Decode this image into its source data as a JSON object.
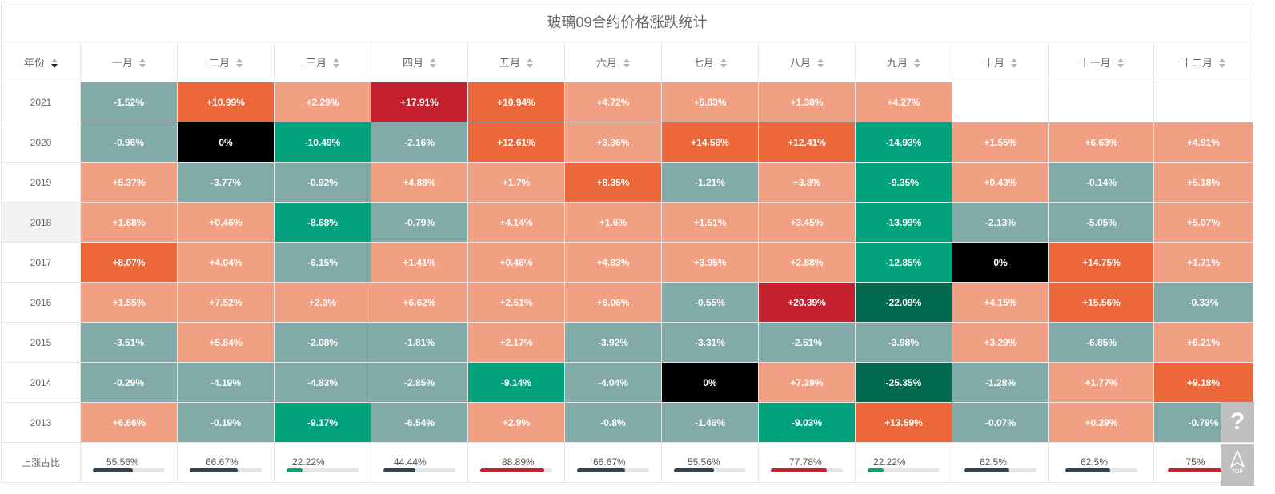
{
  "title": "玻璃09合约价格涨跌统计",
  "headers": [
    "年份",
    "一月",
    "二月",
    "三月",
    "四月",
    "五月",
    "六月",
    "七月",
    "八月",
    "九月",
    "十月",
    "十一月",
    "十二月"
  ],
  "rows": [
    {
      "year": "2021",
      "cells": [
        {
          "text": "-1.52%",
          "color": "#82aaa8"
        },
        {
          "text": "+10.99%",
          "color": "#ec6739"
        },
        {
          "text": "+2.29%",
          "color": "#f1a084"
        },
        {
          "text": "+17.91%",
          "color": "#c4202e"
        },
        {
          "text": "+10.94%",
          "color": "#ec6739"
        },
        {
          "text": "+4.72%",
          "color": "#f1a084"
        },
        {
          "text": "+5.83%",
          "color": "#f1a084"
        },
        {
          "text": "+1.38%",
          "color": "#f1a084"
        },
        {
          "text": "+4.27%",
          "color": "#f1a084"
        },
        {
          "text": "",
          "color": "#ffffff"
        },
        {
          "text": "",
          "color": "#ffffff"
        },
        {
          "text": "",
          "color": "#ffffff"
        }
      ]
    },
    {
      "year": "2020",
      "cells": [
        {
          "text": "-0.96%",
          "color": "#82aaa8"
        },
        {
          "text": "0%",
          "color": "#000000"
        },
        {
          "text": "-10.49%",
          "color": "#02a27d"
        },
        {
          "text": "-2.16%",
          "color": "#82aaa8"
        },
        {
          "text": "+12.61%",
          "color": "#ec6739"
        },
        {
          "text": "+3.36%",
          "color": "#f1a084"
        },
        {
          "text": "+14.56%",
          "color": "#ec6739"
        },
        {
          "text": "+12.41%",
          "color": "#ec6739"
        },
        {
          "text": "-14.93%",
          "color": "#02a27d"
        },
        {
          "text": "+1.55%",
          "color": "#f1a084"
        },
        {
          "text": "+6.63%",
          "color": "#f1a084"
        },
        {
          "text": "+4.91%",
          "color": "#f1a084"
        }
      ]
    },
    {
      "year": "2019",
      "cells": [
        {
          "text": "+5.37%",
          "color": "#f1a084"
        },
        {
          "text": "-3.77%",
          "color": "#82aaa8"
        },
        {
          "text": "-0.92%",
          "color": "#82aaa8"
        },
        {
          "text": "+4.88%",
          "color": "#f1a084"
        },
        {
          "text": "+1.7%",
          "color": "#f1a084"
        },
        {
          "text": "+8.35%",
          "color": "#ec6739"
        },
        {
          "text": "-1.21%",
          "color": "#82aaa8"
        },
        {
          "text": "+3.8%",
          "color": "#f1a084"
        },
        {
          "text": "-9.35%",
          "color": "#02a27d"
        },
        {
          "text": "+0.43%",
          "color": "#f1a084"
        },
        {
          "text": "-0.14%",
          "color": "#82aaa8"
        },
        {
          "text": "+5.18%",
          "color": "#f1a084"
        }
      ]
    },
    {
      "year": "2018",
      "highlight": true,
      "cells": [
        {
          "text": "+1.68%",
          "color": "#f1a084"
        },
        {
          "text": "+0.46%",
          "color": "#f1a084"
        },
        {
          "text": "-8.68%",
          "color": "#02a27d"
        },
        {
          "text": "-0.79%",
          "color": "#82aaa8"
        },
        {
          "text": "+4.14%",
          "color": "#f1a084"
        },
        {
          "text": "+1.6%",
          "color": "#f1a084"
        },
        {
          "text": "+1.51%",
          "color": "#f1a084"
        },
        {
          "text": "+3.45%",
          "color": "#f1a084"
        },
        {
          "text": "-13.99%",
          "color": "#02a27d"
        },
        {
          "text": "-2.13%",
          "color": "#82aaa8"
        },
        {
          "text": "-5.05%",
          "color": "#82aaa8"
        },
        {
          "text": "+5.07%",
          "color": "#f1a084"
        }
      ]
    },
    {
      "year": "2017",
      "cells": [
        {
          "text": "+8.07%",
          "color": "#ec6739"
        },
        {
          "text": "+4.04%",
          "color": "#f1a084"
        },
        {
          "text": "-6.15%",
          "color": "#82aaa8"
        },
        {
          "text": "+1.41%",
          "color": "#f1a084"
        },
        {
          "text": "+0.46%",
          "color": "#f1a084"
        },
        {
          "text": "+4.83%",
          "color": "#f1a084"
        },
        {
          "text": "+3.95%",
          "color": "#f1a084"
        },
        {
          "text": "+2.88%",
          "color": "#f1a084"
        },
        {
          "text": "-12.85%",
          "color": "#02a27d"
        },
        {
          "text": "0%",
          "color": "#000000"
        },
        {
          "text": "+14.75%",
          "color": "#ec6739"
        },
        {
          "text": "+1.71%",
          "color": "#f1a084"
        }
      ]
    },
    {
      "year": "2016",
      "cells": [
        {
          "text": "+1.55%",
          "color": "#f1a084"
        },
        {
          "text": "+7.52%",
          "color": "#f1a084"
        },
        {
          "text": "+2.3%",
          "color": "#f1a084"
        },
        {
          "text": "+6.62%",
          "color": "#f1a084"
        },
        {
          "text": "+2.51%",
          "color": "#f1a084"
        },
        {
          "text": "+6.06%",
          "color": "#f1a084"
        },
        {
          "text": "-0.55%",
          "color": "#82aaa8"
        },
        {
          "text": "+20.39%",
          "color": "#c4202e"
        },
        {
          "text": "-22.09%",
          "color": "#036a4f"
        },
        {
          "text": "+4.15%",
          "color": "#f1a084"
        },
        {
          "text": "+15.56%",
          "color": "#ec6739"
        },
        {
          "text": "-0.33%",
          "color": "#82aaa8"
        }
      ]
    },
    {
      "year": "2015",
      "cells": [
        {
          "text": "-3.51%",
          "color": "#82aaa8"
        },
        {
          "text": "+5.84%",
          "color": "#f1a084"
        },
        {
          "text": "-2.08%",
          "color": "#82aaa8"
        },
        {
          "text": "-1.81%",
          "color": "#82aaa8"
        },
        {
          "text": "+2.17%",
          "color": "#f1a084"
        },
        {
          "text": "-3.92%",
          "color": "#82aaa8"
        },
        {
          "text": "-3.31%",
          "color": "#82aaa8"
        },
        {
          "text": "-2.51%",
          "color": "#82aaa8"
        },
        {
          "text": "-3.98%",
          "color": "#82aaa8"
        },
        {
          "text": "+3.29%",
          "color": "#f1a084"
        },
        {
          "text": "-6.85%",
          "color": "#82aaa8"
        },
        {
          "text": "+6.21%",
          "color": "#f1a084"
        }
      ]
    },
    {
      "year": "2014",
      "cells": [
        {
          "text": "-0.29%",
          "color": "#82aaa8"
        },
        {
          "text": "-4.19%",
          "color": "#82aaa8"
        },
        {
          "text": "-4.83%",
          "color": "#82aaa8"
        },
        {
          "text": "-2.85%",
          "color": "#82aaa8"
        },
        {
          "text": "-9.14%",
          "color": "#02a27d"
        },
        {
          "text": "-4.04%",
          "color": "#82aaa8"
        },
        {
          "text": "0%",
          "color": "#000000"
        },
        {
          "text": "+7.39%",
          "color": "#f1a084"
        },
        {
          "text": "-25.35%",
          "color": "#036a4f"
        },
        {
          "text": "-1.28%",
          "color": "#82aaa8"
        },
        {
          "text": "+1.77%",
          "color": "#f1a084"
        },
        {
          "text": "+9.18%",
          "color": "#ec6739"
        }
      ]
    },
    {
      "year": "2013",
      "cells": [
        {
          "text": "+6.66%",
          "color": "#f1a084"
        },
        {
          "text": "-0.19%",
          "color": "#82aaa8"
        },
        {
          "text": "-9.17%",
          "color": "#02a27d"
        },
        {
          "text": "-6.54%",
          "color": "#82aaa8"
        },
        {
          "text": "+2.9%",
          "color": "#f1a084"
        },
        {
          "text": "-0.8%",
          "color": "#82aaa8"
        },
        {
          "text": "-1.46%",
          "color": "#82aaa8"
        },
        {
          "text": "-9.03%",
          "color": "#02a27d"
        },
        {
          "text": "+13.59%",
          "color": "#ec6739"
        },
        {
          "text": "-0.07%",
          "color": "#82aaa8"
        },
        {
          "text": "+0.29%",
          "color": "#f1a084"
        },
        {
          "text": "-0.79%",
          "color": "#82aaa8"
        }
      ]
    }
  ],
  "ratio": {
    "label": "上涨占比",
    "items": [
      {
        "text": "55.56%",
        "value": 0.5556,
        "color": "#2f4454"
      },
      {
        "text": "66.67%",
        "value": 0.6667,
        "color": "#2f4454"
      },
      {
        "text": "22.22%",
        "value": 0.2222,
        "color": "#0aa078"
      },
      {
        "text": "44.44%",
        "value": 0.4444,
        "color": "#2f4454"
      },
      {
        "text": "88.89%",
        "value": 0.8889,
        "color": "#c4202e"
      },
      {
        "text": "66.67%",
        "value": 0.6667,
        "color": "#2f4454"
      },
      {
        "text": "55.56%",
        "value": 0.5556,
        "color": "#2f4454"
      },
      {
        "text": "77.78%",
        "value": 0.7778,
        "color": "#c4202e"
      },
      {
        "text": "22.22%",
        "value": 0.2222,
        "color": "#0aa078"
      },
      {
        "text": "62.5%",
        "value": 0.625,
        "color": "#2f4454"
      },
      {
        "text": "62.5%",
        "value": 0.625,
        "color": "#2f4454"
      },
      {
        "text": "75%",
        "value": 0.75,
        "color": "#c4202e"
      }
    ]
  },
  "float_buttons": {
    "help_icon": "?",
    "top_label": "TOP"
  }
}
